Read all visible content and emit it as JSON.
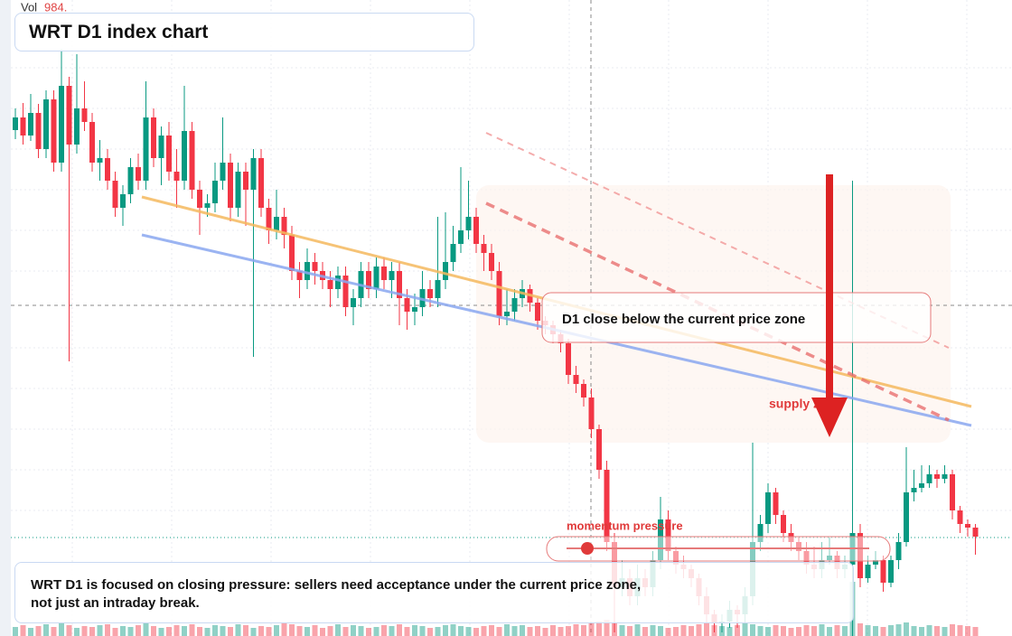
{
  "header": {
    "vol_label": "Vol",
    "vol_value": "984.",
    "title": "WRT D1 index chart"
  },
  "annotations": {
    "callout": "D1 close below the current price zone",
    "zone_label": "supply zone",
    "slider_label": "momentum pressure",
    "note": "WRT D1 is focused on closing pressure: sellers need acceptance under the current price zone, not just an intraday break."
  },
  "chart_data": {
    "type": "candlestick",
    "ylim": [
      0,
      704
    ],
    "up_color": "#089981",
    "down_color": "#f23645",
    "candles": [
      [
        560,
        584,
        550,
        574
      ],
      [
        574,
        590,
        544,
        554
      ],
      [
        554,
        600,
        548,
        579
      ],
      [
        579,
        589,
        529,
        539
      ],
      [
        539,
        604,
        529,
        594
      ],
      [
        594,
        604,
        514,
        524
      ],
      [
        524,
        650,
        514,
        609
      ],
      [
        609,
        619,
        304,
        544
      ],
      [
        544,
        644,
        534,
        584
      ],
      [
        584,
        614,
        559,
        569
      ],
      [
        569,
        579,
        514,
        524
      ],
      [
        524,
        549,
        504,
        529
      ],
      [
        529,
        539,
        494,
        504
      ],
      [
        504,
        514,
        464,
        474
      ],
      [
        474,
        499,
        454,
        489
      ],
      [
        489,
        529,
        479,
        519
      ],
      [
        519,
        534,
        494,
        504
      ],
      [
        504,
        614,
        494,
        574
      ],
      [
        574,
        584,
        519,
        529
      ],
      [
        529,
        564,
        499,
        554
      ],
      [
        554,
        569,
        504,
        514
      ],
      [
        514,
        539,
        474,
        504
      ],
      [
        504,
        609,
        494,
        559
      ],
      [
        559,
        569,
        484,
        494
      ],
      [
        494,
        504,
        444,
        474
      ],
      [
        474,
        489,
        464,
        479
      ],
      [
        479,
        524,
        469,
        504
      ],
      [
        504,
        574,
        494,
        524
      ],
      [
        524,
        534,
        459,
        474
      ],
      [
        474,
        524,
        464,
        514
      ],
      [
        514,
        524,
        454,
        494
      ],
      [
        494,
        539,
        309,
        529
      ],
      [
        529,
        539,
        464,
        474
      ],
      [
        474,
        484,
        434,
        449
      ],
      [
        449,
        494,
        439,
        464
      ],
      [
        464,
        474,
        429,
        444
      ],
      [
        444,
        454,
        394,
        404
      ],
      [
        404,
        414,
        374,
        394
      ],
      [
        394,
        429,
        384,
        414
      ],
      [
        414,
        424,
        389,
        404
      ],
      [
        404,
        414,
        384,
        394
      ],
      [
        394,
        404,
        364,
        384
      ],
      [
        384,
        409,
        374,
        399
      ],
      [
        399,
        409,
        354,
        364
      ],
      [
        364,
        384,
        344,
        374
      ],
      [
        374,
        414,
        364,
        404
      ],
      [
        404,
        414,
        374,
        384
      ],
      [
        384,
        419,
        374,
        409
      ],
      [
        409,
        419,
        384,
        394
      ],
      [
        394,
        414,
        374,
        404
      ],
      [
        404,
        414,
        344,
        374
      ],
      [
        374,
        384,
        339,
        359
      ],
      [
        359,
        379,
        344,
        364
      ],
      [
        364,
        404,
        354,
        384
      ],
      [
        384,
        394,
        364,
        374
      ],
      [
        374,
        464,
        364,
        394
      ],
      [
        394,
        469,
        384,
        414
      ],
      [
        414,
        454,
        404,
        434
      ],
      [
        434,
        519,
        424,
        449
      ],
      [
        449,
        504,
        439,
        464
      ],
      [
        464,
        474,
        424,
        434
      ],
      [
        434,
        444,
        404,
        424
      ],
      [
        424,
        434,
        394,
        404
      ],
      [
        404,
        414,
        344,
        354
      ],
      [
        354,
        384,
        344,
        359
      ],
      [
        359,
        384,
        349,
        374
      ],
      [
        374,
        394,
        364,
        384
      ],
      [
        384,
        389,
        359,
        369
      ],
      [
        369,
        374,
        339,
        349
      ],
      [
        349,
        354,
        334,
        344
      ],
      [
        344,
        349,
        324,
        334
      ],
      [
        334,
        339,
        314,
        324
      ],
      [
        324,
        329,
        279,
        289
      ],
      [
        289,
        299,
        269,
        279
      ],
      [
        279,
        284,
        254,
        264
      ],
      [
        264,
        274,
        219,
        229
      ],
      [
        229,
        234,
        174,
        184
      ],
      [
        184,
        194,
        94,
        104
      ],
      [
        104,
        114,
        4,
        54
      ],
      [
        54,
        84,
        44,
        64
      ],
      [
        64,
        74,
        34,
        44
      ],
      [
        44,
        79,
        34,
        64
      ],
      [
        64,
        74,
        44,
        54
      ],
      [
        54,
        94,
        44,
        84
      ],
      [
        84,
        154,
        74,
        129
      ],
      [
        129,
        139,
        84,
        94
      ],
      [
        94,
        99,
        69,
        79
      ],
      [
        79,
        89,
        64,
        74
      ],
      [
        74,
        79,
        54,
        64
      ],
      [
        64,
        69,
        34,
        44
      ],
      [
        44,
        54,
        14,
        24
      ],
      [
        24,
        29,
        4,
        14
      ],
      [
        14,
        24,
        4,
        16
      ],
      [
        16,
        39,
        9,
        29
      ],
      [
        29,
        34,
        9,
        24
      ],
      [
        24,
        54,
        14,
        44
      ],
      [
        44,
        214,
        34,
        104
      ],
      [
        104,
        134,
        94,
        124
      ],
      [
        124,
        169,
        114,
        159
      ],
      [
        159,
        164,
        124,
        134
      ],
      [
        134,
        139,
        104,
        114
      ],
      [
        114,
        124,
        94,
        104
      ],
      [
        104,
        109,
        84,
        94
      ],
      [
        94,
        104,
        69,
        79
      ],
      [
        79,
        99,
        64,
        74
      ],
      [
        74,
        104,
        64,
        84
      ],
      [
        84,
        109,
        79,
        89
      ],
      [
        89,
        94,
        64,
        74
      ],
      [
        74,
        89,
        64,
        79
      ],
      [
        79,
        504,
        0,
        114
      ],
      [
        114,
        124,
        54,
        64
      ],
      [
        64,
        89,
        59,
        79
      ],
      [
        79,
        94,
        74,
        84
      ],
      [
        84,
        89,
        49,
        59
      ],
      [
        59,
        89,
        54,
        84
      ],
      [
        84,
        114,
        74,
        104
      ],
      [
        104,
        209,
        99,
        159
      ],
      [
        159,
        184,
        149,
        164
      ],
      [
        164,
        189,
        159,
        169
      ],
      [
        169,
        189,
        164,
        179
      ],
      [
        179,
        184,
        164,
        174
      ],
      [
        174,
        189,
        169,
        179
      ],
      [
        179,
        184,
        129,
        139
      ],
      [
        139,
        144,
        114,
        124
      ],
      [
        124,
        129,
        110,
        120
      ],
      [
        120,
        124,
        90,
        110
      ]
    ],
    "volume": [
      10,
      12,
      9,
      11,
      13,
      10,
      14,
      12,
      9,
      11,
      10,
      12,
      13,
      9,
      11,
      10,
      12,
      14,
      11,
      9,
      10,
      12,
      11,
      13,
      10,
      9,
      12,
      11,
      10,
      13,
      12,
      9,
      11,
      10,
      12,
      14,
      13,
      11,
      10,
      12,
      9,
      11,
      13,
      10,
      12,
      11,
      9,
      10,
      12,
      11,
      13,
      10,
      12,
      11,
      9,
      10,
      12,
      13,
      11,
      10,
      9,
      11,
      12,
      10,
      13,
      11,
      12,
      10,
      11,
      9,
      12,
      10,
      11,
      13,
      12,
      14,
      16,
      18,
      15,
      12,
      11,
      13,
      10,
      12,
      11,
      9,
      10,
      12,
      11,
      13,
      14,
      12,
      11,
      10,
      12,
      15,
      13,
      11,
      10,
      12,
      11,
      9,
      10,
      12,
      11,
      13,
      10,
      12,
      11,
      60,
      14,
      12,
      11,
      10,
      12,
      13,
      15,
      11,
      10,
      12,
      11,
      10,
      13,
      12,
      11,
      10
    ]
  }
}
